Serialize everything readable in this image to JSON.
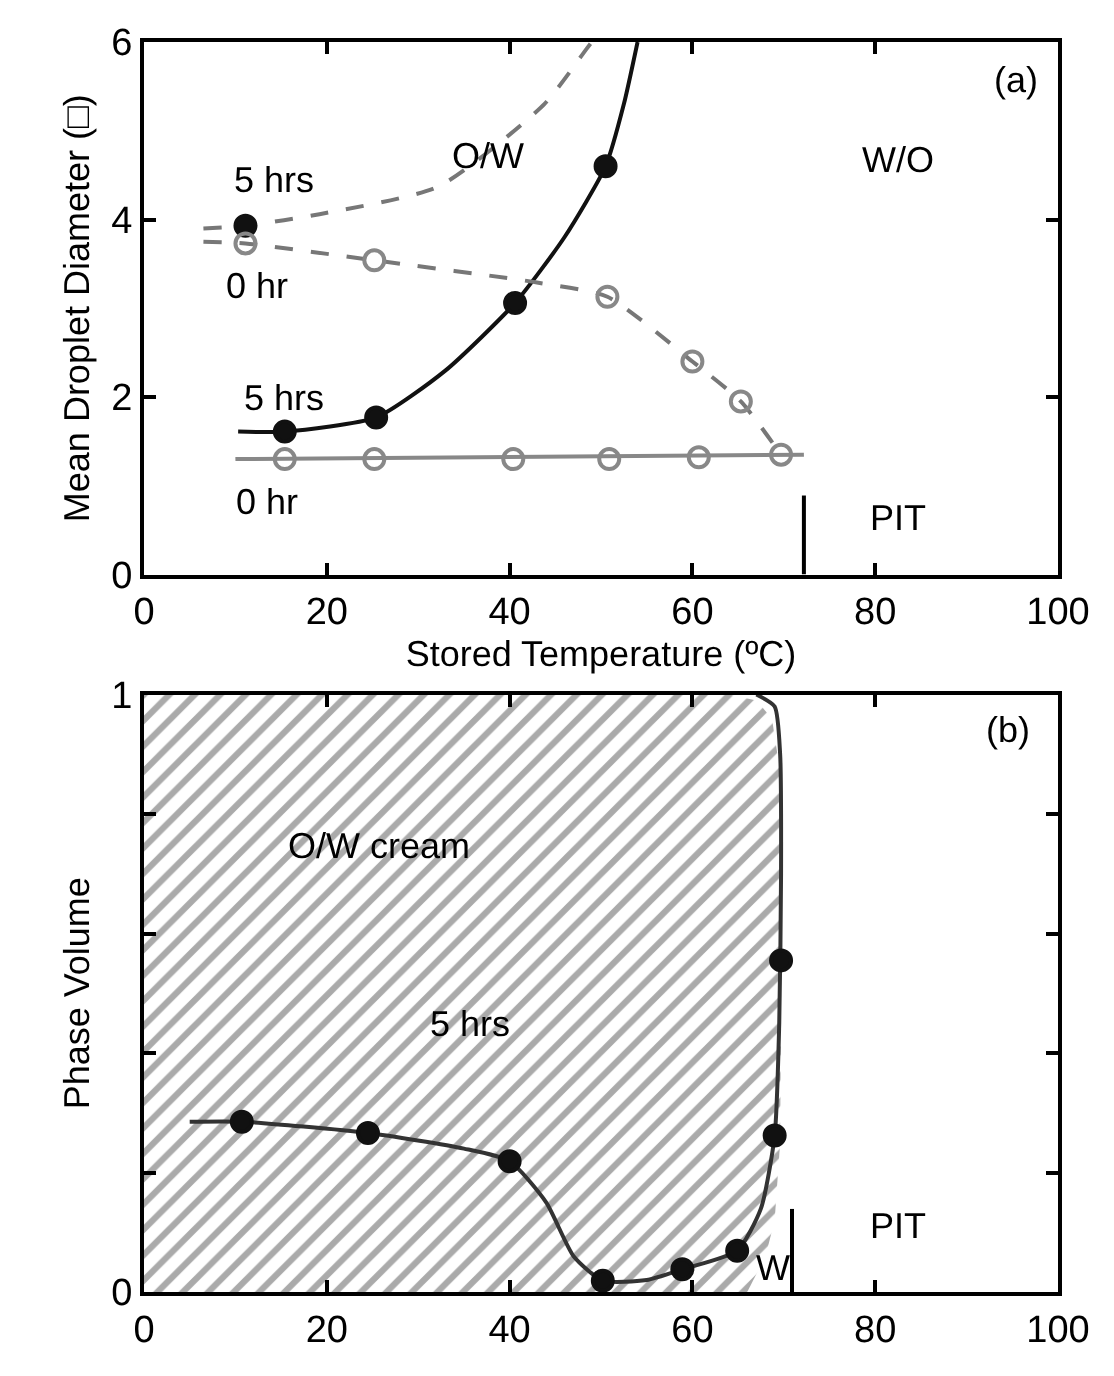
{
  "chart_data": [
    {
      "type": "line",
      "xlabel": "Stored Temperature (ºC)",
      "ylabel": "Mean Droplet Diameter (□)",
      "xlim": [
        0,
        100
      ],
      "ylim": [
        0,
        6
      ],
      "xticks": [
        0,
        20,
        40,
        60,
        80,
        100
      ],
      "yticks": [
        0,
        2,
        4,
        6
      ],
      "series": [
        {
          "color": "#111111",
          "line_style": "solid",
          "marker": "none",
          "x": [
            10.3,
            15.4,
            25.4,
            33,
            40.6,
            46,
            50.5,
            52.5,
            54
          ],
          "values": [
            1.61,
            1.61,
            1.77,
            2.3,
            3.06,
            3.8,
            4.6,
            5.3,
            6
          ]
        },
        {
          "type": "scatter",
          "color": "#111111",
          "marker": "circle",
          "x": [
            15.4,
            25.4,
            40.6,
            50.5
          ],
          "values": [
            1.61,
            1.77,
            3.06,
            4.6
          ]
        },
        {
          "color": "#888888",
          "line_style": "solid",
          "marker": "none",
          "x": [
            10,
            72.2
          ],
          "values": [
            1.3,
            1.35
          ]
        },
        {
          "type": "scatter",
          "color": "#888888",
          "marker": "circle-open",
          "x": [
            15.4,
            25.2,
            40.4,
            50.9,
            60.7,
            69.7
          ],
          "values": [
            1.3,
            1.3,
            1.3,
            1.3,
            1.32,
            1.35
          ]
        },
        {
          "color": "#777777",
          "line_style": "dashed",
          "marker": "none",
          "x": [
            6.5,
            11.1,
            19.2,
            32.2,
            43.8,
            48.4,
            49
          ],
          "values": [
            3.9,
            3.93,
            4.06,
            4.37,
            5.3,
            5.92,
            6
          ]
        },
        {
          "type": "scatter",
          "color": "#111111",
          "marker": "circle",
          "x": [
            11.1
          ],
          "values": [
            3.93
          ]
        },
        {
          "color": "#777777",
          "line_style": "dashed",
          "marker": "none",
          "x": [
            6.5,
            11.1,
            25.2,
            43,
            50.7,
            60,
            65.3,
            69.7
          ],
          "values": [
            3.75,
            3.73,
            3.54,
            3.29,
            3.13,
            2.4,
            1.95,
            1.35
          ]
        },
        {
          "type": "scatter",
          "color": "#888888",
          "marker": "circle-open",
          "x": [
            11.1,
            25.2,
            50.7,
            60,
            65.3
          ],
          "values": [
            3.73,
            3.54,
            3.13,
            2.4,
            1.95
          ]
        },
        {
          "color": "#000000",
          "line_style": "solid",
          "marker": "none",
          "x": [
            72.2,
            72.2
          ],
          "values": [
            0,
            0.89
          ]
        }
      ],
      "annotations": [
        "(a)",
        "5 hrs",
        "0 hr",
        "5 hrs",
        "0 hr",
        "O/W",
        "W/O",
        "PIT"
      ]
    },
    {
      "type": "line",
      "ylabel": "Phase Volume",
      "xlim": [
        0,
        100
      ],
      "ylim": [
        0,
        1
      ],
      "xticks": [
        0,
        20,
        40,
        60,
        80,
        100
      ],
      "yticks": [
        0,
        {
          "value": 0.2,
          "label": null
        },
        {
          "value": 0.4,
          "label": null
        },
        {
          "value": 0.6,
          "label": null
        },
        {
          "value": 0.8,
          "label": null
        },
        1
      ],
      "series": [
        {
          "type": "area",
          "color": "#555555",
          "x": [
            0,
            64,
            67,
            68.7,
            69.5,
            69.7,
            69.6,
            69.0,
            68.0,
            67.0,
            66.0,
            0
          ],
          "values": [
            1,
            1,
            0.99,
            0.96,
            0.88,
            0.5,
            0.25,
            0.12,
            0.06,
            0.03,
            0,
            0
          ]
        },
        {
          "color": "#333333",
          "line_style": "solid",
          "marker": "none",
          "x": [
            5,
            10.7,
            24.5,
            35,
            40,
            44,
            47,
            50.2,
            55,
            58.9,
            64.9,
            67.5,
            69,
            69.5,
            69.7,
            69.6,
            69,
            67
          ],
          "values": [
            0.285,
            0.285,
            0.266,
            0.24,
            0.219,
            0.15,
            0.06,
            0.019,
            0.02,
            0.038,
            0.069,
            0.14,
            0.262,
            0.45,
            0.7,
            0.9,
            0.98,
            1
          ]
        },
        {
          "type": "scatter",
          "color": "#111111",
          "marker": "circle",
          "x": [
            10.7,
            24.5,
            40.0,
            50.2,
            58.9,
            64.9,
            69.0,
            69.7
          ],
          "values": [
            0.285,
            0.266,
            0.219,
            0.019,
            0.038,
            0.069,
            0.262,
            0.555
          ]
        },
        {
          "color": "#000000",
          "line_style": "solid",
          "marker": "none",
          "x": [
            70.9,
            70.9
          ],
          "values": [
            0,
            0.139
          ]
        }
      ],
      "annotations": [
        "(b)",
        "O/W cream",
        "5 hrs",
        "W",
        "PIT"
      ]
    }
  ]
}
